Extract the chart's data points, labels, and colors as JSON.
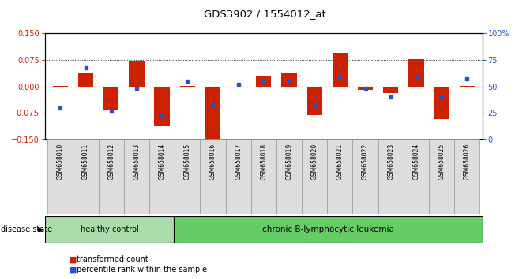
{
  "title": "GDS3902 / 1554012_at",
  "samples": [
    "GSM658010",
    "GSM658011",
    "GSM658012",
    "GSM658013",
    "GSM658014",
    "GSM658015",
    "GSM658016",
    "GSM658017",
    "GSM658018",
    "GSM658019",
    "GSM658020",
    "GSM658021",
    "GSM658022",
    "GSM658023",
    "GSM658024",
    "GSM658025",
    "GSM658026"
  ],
  "red_values": [
    0.001,
    0.038,
    -0.065,
    0.07,
    -0.113,
    0.001,
    -0.148,
    -0.003,
    0.028,
    0.038,
    -0.08,
    0.095,
    -0.01,
    -0.018,
    0.078,
    -0.093,
    0.001
  ],
  "blue_values_pct": [
    30,
    68,
    27,
    48,
    22,
    55,
    33,
    52,
    55,
    55,
    32,
    58,
    48,
    40,
    58,
    40,
    57
  ],
  "healthy_count": 5,
  "group_labels": [
    "healthy control",
    "chronic B-lymphocytic leukemia"
  ],
  "healthy_color": "#aaddaa",
  "chronic_color": "#66cc66",
  "ylim": [
    -0.15,
    0.15
  ],
  "yticks_left": [
    -0.15,
    -0.075,
    0,
    0.075,
    0.15
  ],
  "yticks_right": [
    0,
    25,
    50,
    75,
    100
  ],
  "red_color": "#cc2200",
  "blue_color": "#2255cc",
  "bar_width": 0.6,
  "legend_red": "transformed count",
  "legend_blue": "percentile rank within the sample",
  "disease_state_label": "disease state",
  "bg_color": "#ffffff"
}
